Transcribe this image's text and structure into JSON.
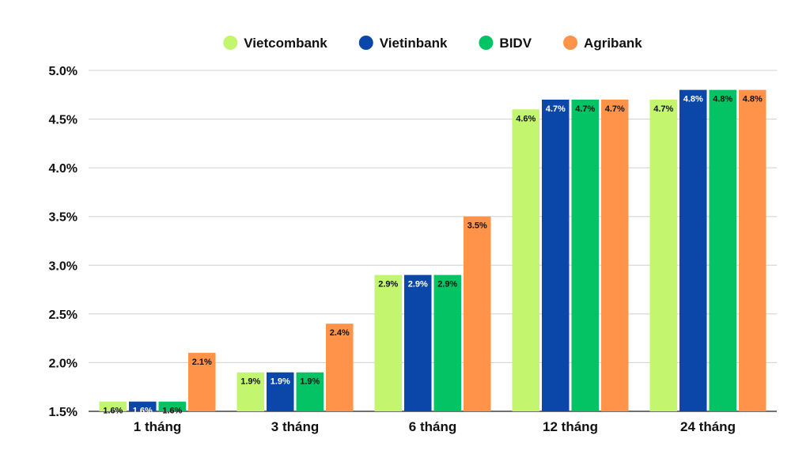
{
  "chart_data": {
    "type": "bar",
    "categories": [
      "1 tháng",
      "3 tháng",
      "6 tháng",
      "12 tháng",
      "24 tháng"
    ],
    "series": [
      {
        "name": "Vietcombank",
        "color": "#c3f56f",
        "label_color": "#111111",
        "values": [
          1.6,
          1.9,
          2.9,
          4.6,
          4.7
        ],
        "labels": [
          "1.6%",
          "1.9%",
          "2.9%",
          "4.6%",
          "4.7%"
        ]
      },
      {
        "name": "Vietinbank",
        "color": "#0a47a8",
        "label_color": "#ffffff",
        "values": [
          1.6,
          1.9,
          2.9,
          4.7,
          4.8
        ],
        "labels": [
          "1.6%",
          "1.9%",
          "2.9%",
          "4.7%",
          "4.8%"
        ]
      },
      {
        "name": "BIDV",
        "color": "#03c364",
        "label_color": "#111111",
        "values": [
          1.6,
          1.9,
          2.9,
          4.7,
          4.8
        ],
        "labels": [
          "1.6%",
          "1.9%",
          "2.9%",
          "4.7%",
          "4.8%"
        ]
      },
      {
        "name": "Agribank",
        "color": "#ff934a",
        "label_color": "#111111",
        "values": [
          2.1,
          2.4,
          3.5,
          4.7,
          4.8
        ],
        "labels": [
          "2.1%",
          "2.4%",
          "3.5%",
          "4.7%",
          "4.8%"
        ]
      }
    ],
    "yticks": [
      1.5,
      2.0,
      2.5,
      3.0,
      3.5,
      4.0,
      4.5,
      5.0
    ],
    "ytick_labels": [
      "1.5%",
      "2.0%",
      "2.5%",
      "3.0%",
      "3.5%",
      "4.0%",
      "4.5%",
      "5.0%"
    ],
    "ylim": [
      1.5,
      5.0
    ],
    "title": "",
    "xlabel": "",
    "ylabel": "",
    "grid": true,
    "legend_position": "top-center"
  }
}
